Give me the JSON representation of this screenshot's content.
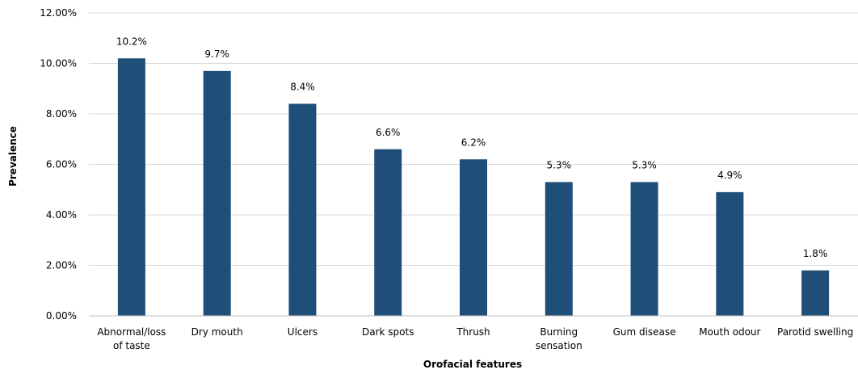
{
  "chart_data": {
    "type": "bar",
    "title": "",
    "xlabel": "Orofacial features",
    "ylabel": "Prevalence",
    "ylim": [
      0,
      12
    ],
    "yticks": [
      0,
      2,
      4,
      6,
      8,
      10,
      12
    ],
    "ytick_labels": [
      "0.00%",
      "2.00%",
      "4.00%",
      "6.00%",
      "8.00%",
      "10.00%",
      "12.00%"
    ],
    "grid": true,
    "legend": "none",
    "bar_color": "#1f4e79",
    "categories": [
      [
        "Abnormal/loss",
        "of taste"
      ],
      [
        "Dry mouth"
      ],
      [
        "Ulcers"
      ],
      [
        "Dark spots"
      ],
      [
        "Thrush"
      ],
      [
        "Burning",
        "sensation"
      ],
      [
        "Gum disease"
      ],
      [
        "Mouth odour"
      ],
      [
        "Parotid swelling"
      ]
    ],
    "values": [
      10.2,
      9.7,
      8.4,
      6.6,
      6.2,
      5.3,
      5.3,
      4.9,
      1.8
    ],
    "data_labels": [
      "10.2%",
      "9.7%",
      "8.4%",
      "6.6%",
      "6.2%",
      "5.3%",
      "5.3%",
      "4.9%",
      "1.8%"
    ]
  }
}
